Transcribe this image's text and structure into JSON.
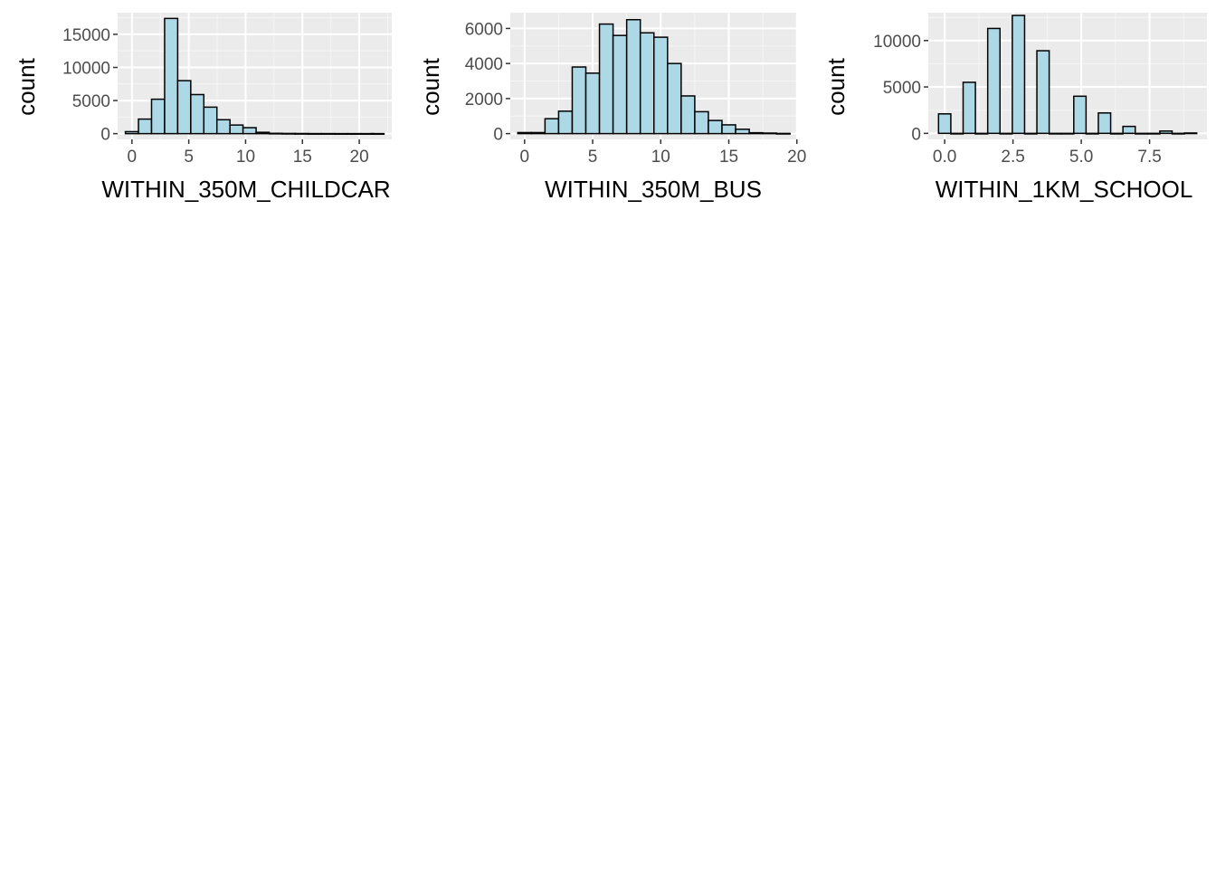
{
  "colors": {
    "panel_background": "#ebebeb",
    "grid_major": "#ffffff",
    "grid_minor": "#f5f5f5",
    "bar_fill": "#add8e6",
    "bar_stroke": "#000000",
    "tick_label": "#4d4d4d",
    "axis_title": "#000000"
  },
  "chart_data": [
    {
      "type": "bar",
      "subtype": "histogram",
      "xlabel": "WITHIN_350M_CHILDCAR",
      "ylabel": "count",
      "xlim": [
        -1.26,
        22.86
      ],
      "ylim": [
        -870,
        18270
      ],
      "x_ticks": [
        0,
        5,
        10,
        15,
        20
      ],
      "x_tick_labels": [
        "0",
        "5",
        "10",
        "15",
        "20"
      ],
      "y_ticks": [
        0,
        5000,
        10000,
        15000
      ],
      "y_tick_labels": [
        "0",
        "5000",
        "10000",
        "15000"
      ],
      "bin_width": 1.15,
      "bin_centers": [
        0,
        1.15,
        2.3,
        3.45,
        4.6,
        5.75,
        6.9,
        8.05,
        9.2,
        10.35,
        11.5,
        12.65,
        13.8,
        14.95,
        16.1,
        17.25,
        18.4,
        19.55,
        20.7,
        21.6
      ],
      "values": [
        300,
        2200,
        5200,
        17400,
        8000,
        5900,
        4000,
        2100,
        1300,
        900,
        200,
        50,
        30,
        20,
        10,
        10,
        5,
        5,
        5,
        5
      ],
      "grid": true
    },
    {
      "type": "bar",
      "subtype": "histogram",
      "xlabel": "WITHIN_350M_BUS",
      "ylabel": "count",
      "xlim": [
        -1.05,
        19.95
      ],
      "ylim": [
        -330,
        6900
      ],
      "x_ticks": [
        0,
        5,
        10,
        15,
        20
      ],
      "x_tick_labels": [
        "0",
        "5",
        "10",
        "15",
        "20"
      ],
      "y_ticks": [
        0,
        2000,
        4000,
        6000
      ],
      "y_tick_labels": [
        "0",
        "2000",
        "4000",
        "6000"
      ],
      "bin_width": 1,
      "bin_centers": [
        0,
        1,
        2,
        3,
        4,
        5,
        6,
        7,
        8,
        9,
        10,
        11,
        12,
        13,
        14,
        15,
        16,
        17,
        18,
        19
      ],
      "values": [
        60,
        60,
        850,
        1280,
        3800,
        3450,
        6250,
        5600,
        6500,
        5750,
        5500,
        4000,
        2150,
        1250,
        750,
        500,
        250,
        50,
        30,
        10
      ],
      "grid": true
    },
    {
      "type": "bar",
      "subtype": "histogram",
      "xlabel": "WITHIN_1KM_SCHOOL",
      "ylabel": "count",
      "xlim": [
        -0.6,
        9.6
      ],
      "ylim": [
        -650,
        13000
      ],
      "x_ticks": [
        0,
        2.5,
        5,
        7.5
      ],
      "x_tick_labels": [
        "0.0",
        "2.5",
        "5.0",
        "7.5"
      ],
      "y_ticks": [
        0,
        5000,
        10000
      ],
      "y_tick_labels": [
        "0",
        "5000",
        "10000"
      ],
      "bin_width": 0.45,
      "bin_centers": [
        0,
        0.45,
        0.9,
        1.35,
        1.8,
        2.25,
        2.7,
        3.15,
        3.6,
        4.05,
        4.5,
        4.95,
        5.4,
        5.85,
        6.3,
        6.75,
        7.2,
        7.65,
        8.1,
        8.55,
        9.0
      ],
      "values": [
        2100,
        0,
        5500,
        0,
        11300,
        0,
        12700,
        0,
        8900,
        0,
        0,
        4000,
        0,
        2200,
        0,
        750,
        0,
        0,
        250,
        0,
        40
      ],
      "grid": true
    }
  ]
}
